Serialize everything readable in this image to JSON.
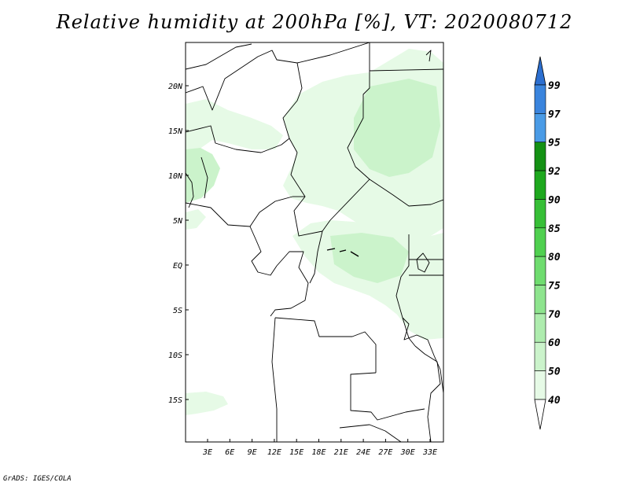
{
  "title": "Relative humidity at 200hPa [%], VT: 2020080712",
  "credit": "GrADS: IGES/COLA",
  "map": {
    "lat_labels": [
      "20N",
      "15N",
      "10N",
      "5N",
      "EQ",
      "5S",
      "10S",
      "15S"
    ],
    "lon_labels": [
      "3E",
      "6E",
      "9E",
      "12E",
      "15E",
      "18E",
      "21E",
      "24E",
      "27E",
      "30E",
      "33E"
    ],
    "lat_range": [
      -19.5,
      25
    ],
    "lon_range": [
      0,
      34.5
    ]
  },
  "colorbar": {
    "levels": [
      "99",
      "97",
      "95",
      "92",
      "90",
      "85",
      "80",
      "75",
      "70",
      "60",
      "50",
      "40"
    ],
    "colors": {
      "above_99": "#2c6fd0",
      "97_99": "#3a84dd",
      "95_97": "#4a9be6",
      "92_95": "#149114",
      "90_92": "#1ea81e",
      "85_90": "#37bf37",
      "80_85": "#50d050",
      "75_80": "#6fdc6f",
      "70_75": "#8ee48e",
      "60_70": "#aeecae",
      "50_60": "#cbf3cb",
      "40_50": "#e6fae6",
      "below_40": "#ffffff"
    }
  },
  "fill_colors": {
    "light": "#e6fae6",
    "mid": "#cbf3cb",
    "strong": "#aeecae"
  }
}
